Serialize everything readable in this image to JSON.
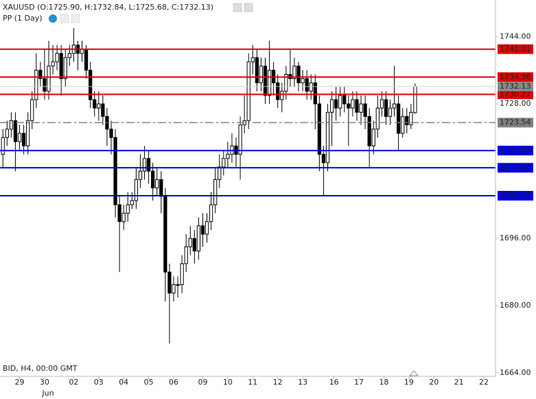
{
  "chart_data": {
    "type": "candlestick",
    "title": "XAUUSD (O:1725.90, H:1732.84, L:1725.68, C:1732.13)",
    "subtitle": "PP (1 Day)",
    "footnote": "BID, H4, 00:00 GMT",
    "month_label": "Jun",
    "ylim": [
      1663.2,
      1752.7
    ],
    "xlim": [
      -0.7,
      118.3
    ],
    "yticks": [
      {
        "value": 1744,
        "label": "1744.00"
      },
      {
        "value": 1728,
        "label": "1728.00"
      },
      {
        "value": 1696,
        "label": "1696.00"
      },
      {
        "value": 1680,
        "label": "1680.00"
      },
      {
        "value": 1664,
        "label": "1664.00"
      }
    ],
    "xticks": [
      {
        "value": 4,
        "label": "29"
      },
      {
        "value": 10,
        "label": "30"
      },
      {
        "value": 17,
        "label": "02"
      },
      {
        "value": 23,
        "label": "03"
      },
      {
        "value": 29,
        "label": "04"
      },
      {
        "value": 35,
        "label": "05"
      },
      {
        "value": 41,
        "label": "06"
      },
      {
        "value": 48,
        "label": "09"
      },
      {
        "value": 54,
        "label": "10"
      },
      {
        "value": 60,
        "label": "11"
      },
      {
        "value": 66,
        "label": "12"
      },
      {
        "value": 72,
        "label": "13"
      },
      {
        "value": 79.5,
        "label": "16"
      },
      {
        "value": 85.5,
        "label": "17"
      },
      {
        "value": 91.5,
        "label": "18"
      },
      {
        "value": 97.5,
        "label": "19"
      },
      {
        "value": 103.5,
        "label": "20"
      },
      {
        "value": 109.5,
        "label": "21"
      },
      {
        "value": 115.5,
        "label": "22"
      }
    ],
    "up_color": "#ffffff",
    "down_color": "#000000",
    "levels": [
      {
        "value": 1741.01,
        "label": "1741.01",
        "color": "#e00000",
        "style": "solid"
      },
      {
        "value": 1734.36,
        "label": "1734.36",
        "color": "#e00000",
        "style": "solid"
      },
      {
        "value": 1730.27,
        "label": "1730.27",
        "color": "#e00000",
        "style": "solid"
      },
      {
        "value": 1723.54,
        "label": "1723.54",
        "color": "#808080",
        "style": "dashdot"
      },
      {
        "value": 1716.89,
        "label": "1716.89",
        "color": "#0000e0",
        "style": "solid"
      },
      {
        "value": 1712.8,
        "label": "1712.80",
        "color": "#0000e0",
        "style": "solid"
      },
      {
        "value": 1706.15,
        "label": "1706.15",
        "color": "#0000e0",
        "style": "solid"
      }
    ],
    "current_price": {
      "value": 1732.13,
      "label": "1732.13",
      "color": "#8a8a8a"
    },
    "open": [
      1716,
      1720,
      1722,
      1724,
      1719,
      1721,
      1718,
      1724,
      1729,
      1736,
      1734,
      1731,
      1737,
      1738,
      1740,
      1734,
      1739,
      1740,
      1742,
      1740,
      1741,
      1736,
      1729,
      1727,
      1728,
      1725,
      1722,
      1720,
      1704,
      1700,
      1702,
      1704,
      1705,
      1710,
      1712,
      1715,
      1712,
      1708,
      1710,
      1706,
      1688,
      1683,
      1685,
      1685,
      1690,
      1694,
      1696,
      1693,
      1699,
      1697,
      1700,
      1704,
      1710,
      1713,
      1715,
      1716,
      1718,
      1716,
      1723,
      1724,
      1738,
      1739,
      1733,
      1737,
      1730,
      1736,
      1733,
      1729,
      1731,
      1735,
      1734,
      1737,
      1733,
      1734,
      1731,
      1733,
      1728,
      1716,
      1714,
      1726,
      1729,
      1727,
      1730,
      1728,
      1727,
      1729,
      1726,
      1728,
      1725,
      1718,
      1722,
      1727,
      1729,
      1725,
      1727,
      1728,
      1721,
      1725,
      1723,
      1725.9
    ],
    "high": [
      1722,
      1724,
      1726,
      1726,
      1723,
      1723,
      1726,
      1731,
      1740,
      1738,
      1741,
      1743,
      1742,
      1742,
      1742,
      1741,
      1742,
      1746,
      1743,
      1743,
      1742,
      1738,
      1731,
      1731,
      1730,
      1727,
      1724,
      1722,
      1706,
      1704,
      1707,
      1707,
      1713,
      1716,
      1718,
      1717,
      1714,
      1713,
      1712,
      1708,
      1690,
      1687,
      1687,
      1692,
      1697,
      1699,
      1698,
      1701,
      1702,
      1702,
      1707,
      1713,
      1716,
      1717,
      1719,
      1721,
      1720,
      1725,
      1730,
      1740,
      1742,
      1741,
      1739,
      1739,
      1743,
      1738,
      1735,
      1733,
      1737,
      1741,
      1739,
      1738,
      1736,
      1736,
      1735,
      1735,
      1730,
      1718,
      1728,
      1731,
      1732,
      1732,
      1732,
      1730,
      1731,
      1731,
      1730,
      1730,
      1727,
      1724,
      1730,
      1731,
      1731,
      1729,
      1737,
      1730,
      1727,
      1727,
      1728,
      1732.84
    ],
    "low": [
      1713,
      1718,
      1720,
      1712,
      1717,
      1716,
      1716,
      1722,
      1727,
      1732,
      1729,
      1729,
      1735,
      1736,
      1730,
      1732,
      1737,
      1738,
      1736,
      1738,
      1734,
      1727,
      1725,
      1724,
      1723,
      1718,
      1716,
      1701,
      1688,
      1698,
      1700,
      1703,
      1703,
      1708,
      1710,
      1709,
      1705,
      1706,
      1702,
      1681,
      1671,
      1681,
      1682,
      1683,
      1688,
      1692,
      1690,
      1691,
      1694,
      1695,
      1698,
      1702,
      1708,
      1711,
      1713,
      1714,
      1713,
      1710,
      1721,
      1722,
      1735,
      1731,
      1731,
      1728,
      1728,
      1730,
      1727,
      1726,
      1729,
      1732,
      1732,
      1731,
      1731,
      1729,
      1729,
      1722,
      1712,
      1706,
      1712,
      1718,
      1724,
      1725,
      1726,
      1718,
      1725,
      1724,
      1723,
      1722,
      1713,
      1716,
      1720,
      1725,
      1723,
      1723,
      1725,
      1717,
      1720,
      1721,
      1722,
      1725.68
    ],
    "close": [
      1720,
      1722,
      1724,
      1719,
      1721,
      1718,
      1724,
      1729,
      1736,
      1734,
      1731,
      1737,
      1738,
      1740,
      1734,
      1739,
      1740,
      1742,
      1740,
      1741,
      1736,
      1729,
      1727,
      1728,
      1725,
      1722,
      1720,
      1704,
      1700,
      1702,
      1704,
      1705,
      1710,
      1712,
      1715,
      1712,
      1708,
      1710,
      1706,
      1688,
      1683,
      1685,
      1685,
      1690,
      1694,
      1696,
      1693,
      1699,
      1697,
      1700,
      1704,
      1710,
      1713,
      1715,
      1716,
      1718,
      1716,
      1723,
      1724,
      1738,
      1739,
      1733,
      1737,
      1730,
      1736,
      1733,
      1729,
      1731,
      1735,
      1734,
      1737,
      1733,
      1734,
      1731,
      1733,
      1728,
      1716,
      1714,
      1726,
      1729,
      1727,
      1730,
      1728,
      1727,
      1729,
      1726,
      1728,
      1725,
      1718,
      1722,
      1727,
      1729,
      1725,
      1727,
      1728,
      1721,
      1725,
      1723,
      1726,
      1732.13
    ]
  }
}
